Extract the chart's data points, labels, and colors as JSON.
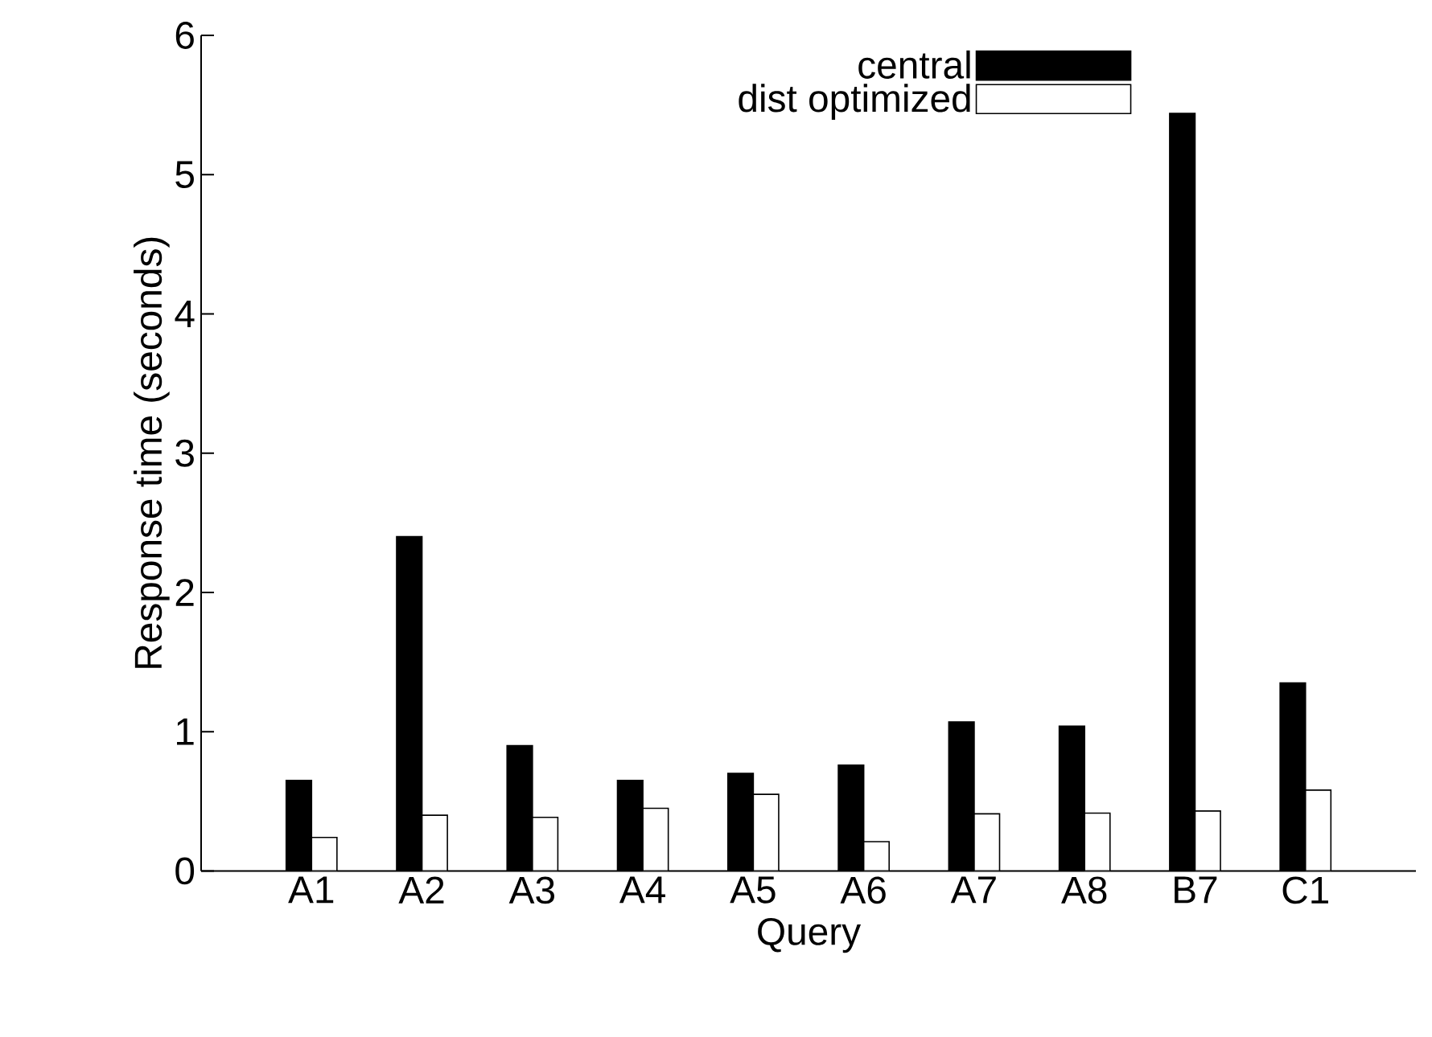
{
  "chart_data": {
    "type": "bar",
    "xlabel": "Query",
    "ylabel": "Response time (seconds)",
    "categories": [
      "A1",
      "A2",
      "A3",
      "A4",
      "A5",
      "A6",
      "A7",
      "A8",
      "B7",
      "C1"
    ],
    "series": [
      {
        "name": "central",
        "color": "#000000",
        "values": [
          0.65,
          2.4,
          0.9,
          0.65,
          0.7,
          0.76,
          1.07,
          1.04,
          5.44,
          1.35
        ]
      },
      {
        "name": "dist optimized",
        "color": "#ffffff",
        "values": [
          0.24,
          0.4,
          0.385,
          0.45,
          0.55,
          0.21,
          0.41,
          0.415,
          0.43,
          0.58
        ]
      }
    ],
    "ylim": [
      0,
      6
    ],
    "yticks": [
      0,
      1,
      2,
      3,
      4,
      5,
      6
    ],
    "legend": "top right"
  }
}
